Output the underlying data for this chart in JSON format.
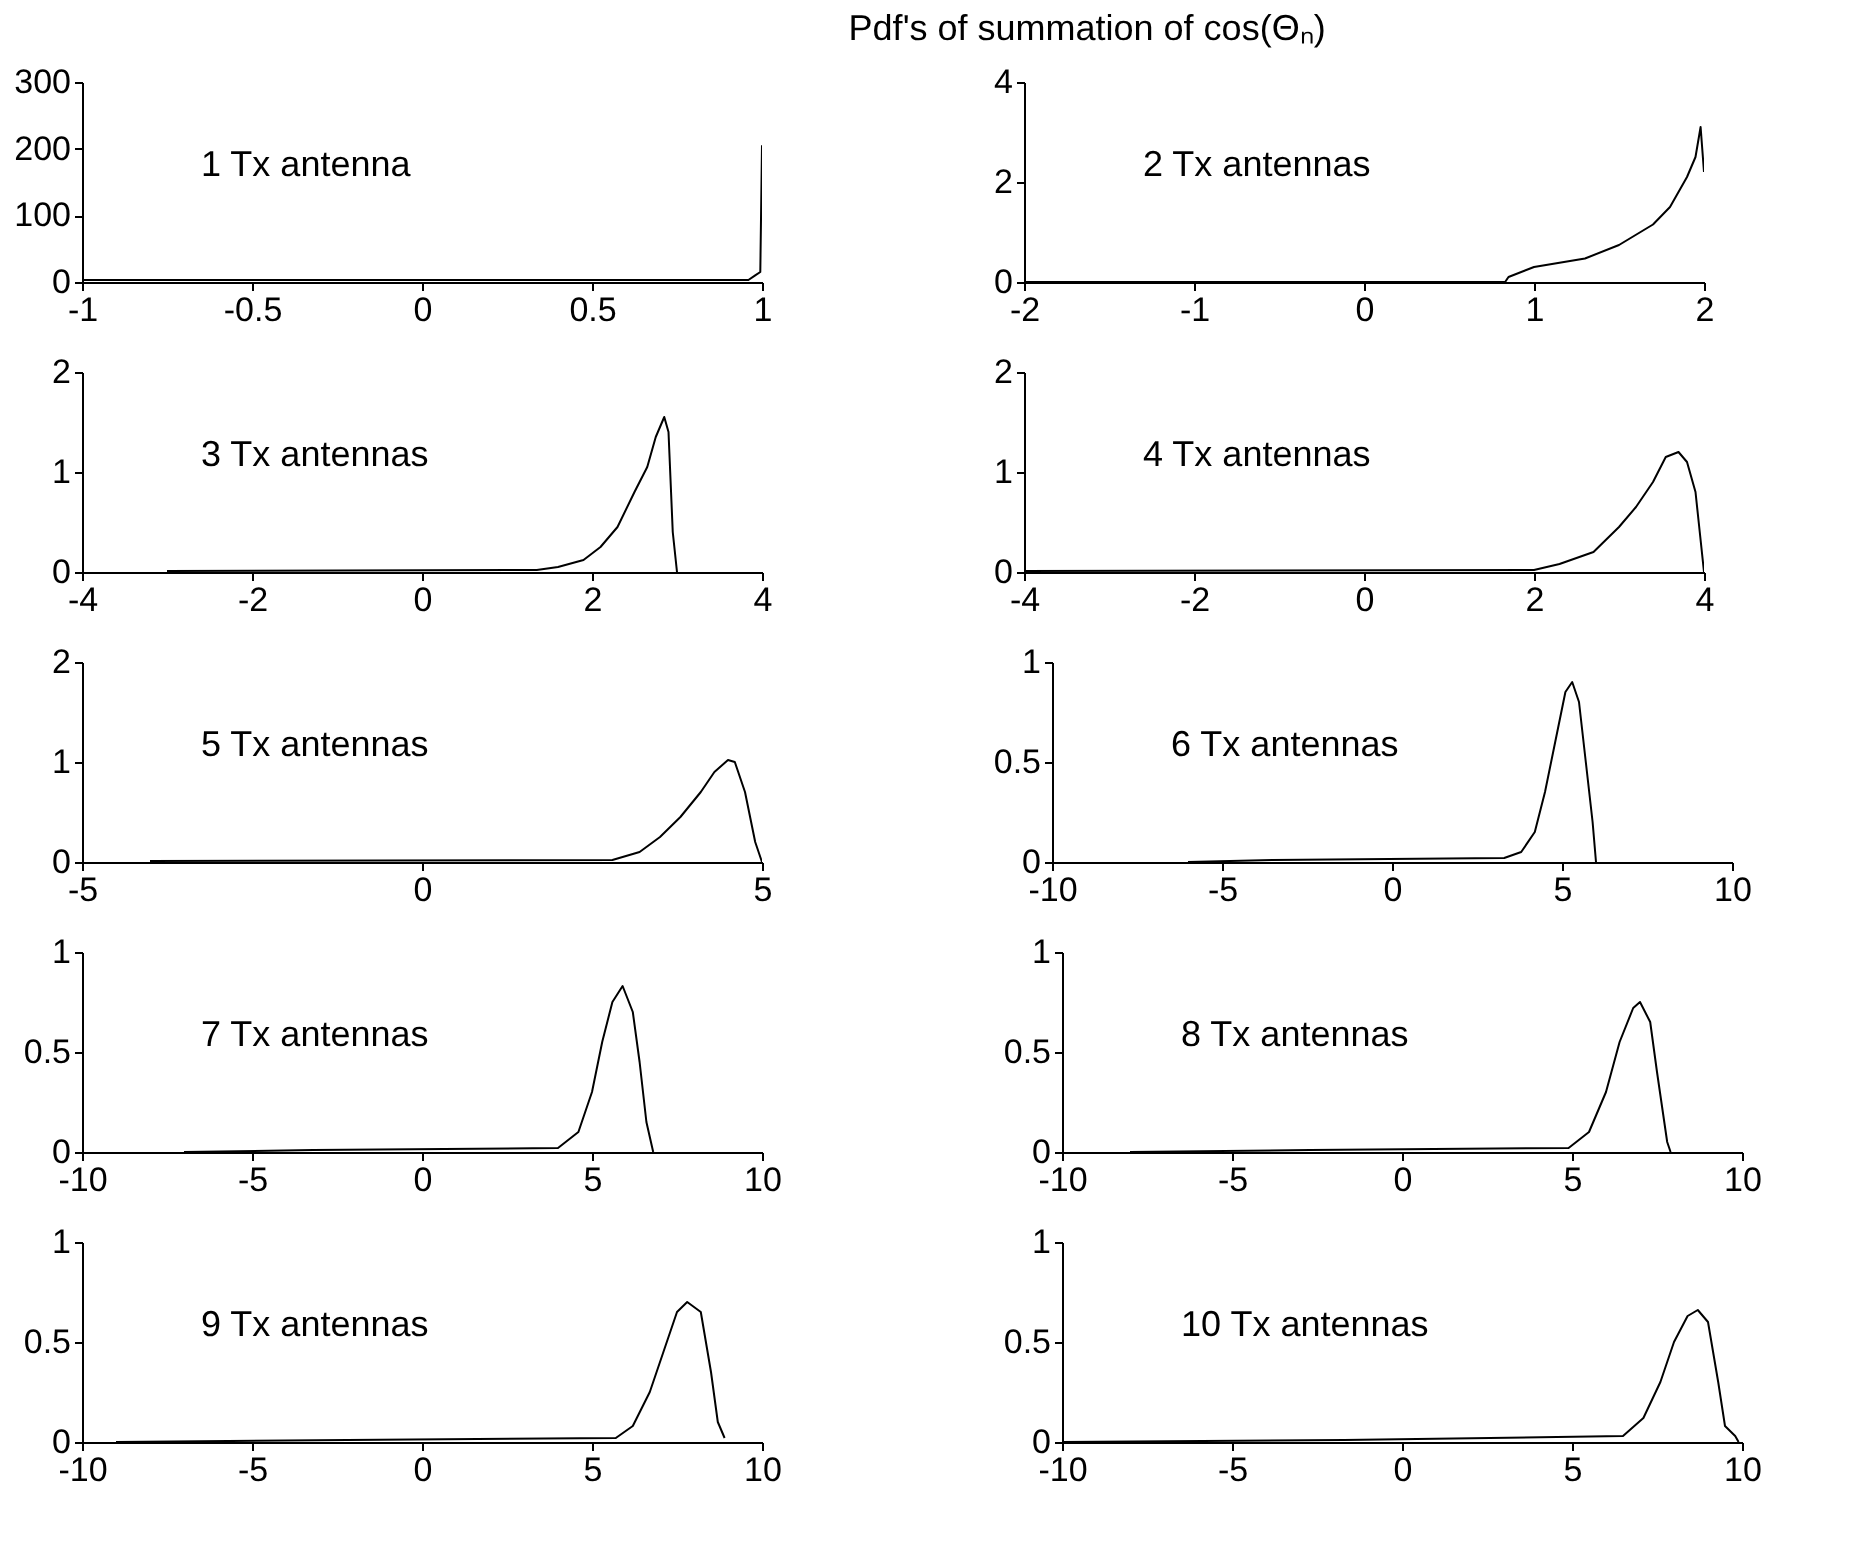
{
  "chart_data": [
    {
      "type": "line",
      "annotations": [
        "1 Tx antenna"
      ],
      "x": [
        -1,
        0.96,
        0.98,
        0.995,
        1
      ],
      "series": [
        {
          "color": "#000000",
          "values": [
            3,
            3,
            10,
            15,
            205
          ]
        }
      ],
      "xlim": [
        -1,
        1
      ],
      "xticks": [
        -1,
        -0.5,
        0,
        0.5,
        1
      ],
      "ylim": [
        0,
        300
      ],
      "yticks": [
        0,
        100,
        200,
        300
      ]
    },
    {
      "type": "line",
      "title": "Pdf's of summation of cos(Θₙ)",
      "annotations": [
        "2 Tx antennas"
      ],
      "x": [
        -2,
        0.83,
        0.85,
        1.0,
        1.3,
        1.5,
        1.7,
        1.8,
        1.9,
        1.95,
        1.98,
        2
      ],
      "series": [
        {
          "color": "#000000",
          "values": [
            0,
            0,
            0.1,
            0.3,
            0.47,
            0.74,
            1.15,
            1.5,
            2.1,
            2.5,
            3.1,
            2.2
          ]
        }
      ],
      "xlim": [
        -2,
        2
      ],
      "xticks": [
        -2,
        -1,
        0,
        1,
        2
      ],
      "ylim": [
        0,
        4
      ],
      "yticks": [
        0,
        2,
        4
      ]
    },
    {
      "type": "line",
      "annotations": [
        "3 Tx antennas"
      ],
      "x": [
        -3,
        1.35,
        1.6,
        1.9,
        2.1,
        2.3,
        2.5,
        2.65,
        2.75,
        2.85,
        2.9,
        2.95,
        3.0
      ],
      "series": [
        {
          "color": "#000000",
          "values": [
            0.01,
            0.02,
            0.05,
            0.12,
            0.25,
            0.45,
            0.8,
            1.05,
            1.35,
            1.55,
            1.4,
            0.4,
            0
          ]
        }
      ],
      "xlim": [
        -4,
        4
      ],
      "xticks": [
        -4,
        -2,
        0,
        2,
        4
      ],
      "ylim": [
        0,
        2
      ],
      "yticks": [
        0,
        1,
        2
      ]
    },
    {
      "type": "line",
      "annotations": [
        "4 Tx antennas"
      ],
      "x": [
        -4,
        2,
        2.3,
        2.7,
        3.0,
        3.2,
        3.4,
        3.55,
        3.7,
        3.8,
        3.9,
        3.95,
        4
      ],
      "series": [
        {
          "color": "#000000",
          "values": [
            0.01,
            0.02,
            0.08,
            0.2,
            0.45,
            0.65,
            0.9,
            1.15,
            1.2,
            1.1,
            0.8,
            0.4,
            0
          ]
        }
      ],
      "xlim": [
        -4,
        4
      ],
      "xticks": [
        -4,
        -2,
        0,
        2,
        4
      ],
      "ylim": [
        0,
        2
      ],
      "yticks": [
        0,
        1,
        2
      ]
    },
    {
      "type": "line",
      "annotations": [
        "5 Tx antennas"
      ],
      "x": [
        -4,
        2.8,
        3.2,
        3.5,
        3.8,
        4.1,
        4.3,
        4.5,
        4.6,
        4.75,
        4.9,
        5
      ],
      "series": [
        {
          "color": "#000000",
          "values": [
            0.01,
            0.02,
            0.1,
            0.25,
            0.45,
            0.7,
            0.9,
            1.02,
            1.0,
            0.7,
            0.2,
            0
          ]
        }
      ],
      "xlim": [
        -5,
        5
      ],
      "xticks": [
        -5,
        0,
        5
      ],
      "ylim": [
        0,
        2
      ],
      "yticks": [
        0,
        1,
        2
      ]
    },
    {
      "type": "line",
      "annotations": [
        "6 Tx antennas"
      ],
      "x": [
        -6,
        -3.5,
        3.3,
        3.8,
        4.2,
        4.5,
        4.8,
        5.1,
        5.3,
        5.5,
        5.7,
        5.9,
        6.0
      ],
      "series": [
        {
          "color": "#000000",
          "values": [
            0,
            0.01,
            0.02,
            0.05,
            0.15,
            0.35,
            0.6,
            0.85,
            0.9,
            0.8,
            0.5,
            0.2,
            0
          ]
        }
      ],
      "xlim": [
        -10,
        10
      ],
      "xticks": [
        -10,
        -5,
        0,
        5,
        10
      ],
      "ylim": [
        0,
        1
      ],
      "yticks": [
        0,
        0.5,
        1
      ]
    },
    {
      "type": "line",
      "annotations": [
        "7 Tx antennas"
      ],
      "x": [
        -7,
        -3.2,
        4,
        4.6,
        5.0,
        5.3,
        5.6,
        5.9,
        6.2,
        6.4,
        6.6,
        6.8
      ],
      "series": [
        {
          "color": "#000000",
          "values": [
            0,
            0.01,
            0.02,
            0.1,
            0.3,
            0.55,
            0.75,
            0.83,
            0.7,
            0.45,
            0.15,
            0
          ]
        }
      ],
      "xlim": [
        -10,
        10
      ],
      "xticks": [
        -10,
        -5,
        0,
        5,
        10
      ],
      "ylim": [
        0,
        1
      ],
      "yticks": [
        0,
        0.5,
        1
      ]
    },
    {
      "type": "line",
      "annotations": [
        "8 Tx antennas"
      ],
      "x": [
        -8,
        -2.7,
        4.9,
        5.5,
        6.0,
        6.4,
        6.8,
        7.0,
        7.3,
        7.5,
        7.8,
        7.9
      ],
      "series": [
        {
          "color": "#000000",
          "values": [
            0,
            0.01,
            0.02,
            0.1,
            0.3,
            0.55,
            0.72,
            0.75,
            0.65,
            0.4,
            0.05,
            0
          ]
        }
      ],
      "xlim": [
        -10,
        10
      ],
      "xticks": [
        -10,
        -5,
        0,
        5,
        10
      ],
      "ylim": [
        0,
        1
      ],
      "yticks": [
        0,
        0.5,
        1
      ]
    },
    {
      "type": "line",
      "annotations": [
        "9 Tx antennas"
      ],
      "x": [
        -9,
        -2.2,
        5.7,
        6.2,
        6.7,
        7.1,
        7.5,
        7.8,
        8.2,
        8.5,
        8.7,
        8.9
      ],
      "series": [
        {
          "color": "#000000",
          "values": [
            0,
            0.01,
            0.02,
            0.08,
            0.25,
            0.45,
            0.65,
            0.7,
            0.65,
            0.35,
            0.1,
            0.02
          ]
        }
      ],
      "xlim": [
        -10,
        10
      ],
      "xticks": [
        -10,
        -5,
        0,
        5,
        10
      ],
      "ylim": [
        0,
        1
      ],
      "yticks": [
        0,
        0.5,
        1
      ]
    },
    {
      "type": "line",
      "annotations": [
        "10 Tx antennas"
      ],
      "x": [
        -10,
        -1.7,
        6.5,
        7.1,
        7.6,
        8.0,
        8.4,
        8.7,
        9.0,
        9.3,
        9.5,
        9.8,
        9.9
      ],
      "series": [
        {
          "color": "#000000",
          "values": [
            0,
            0.01,
            0.03,
            0.12,
            0.3,
            0.5,
            0.63,
            0.66,
            0.6,
            0.3,
            0.08,
            0.03,
            0
          ]
        }
      ],
      "xlim": [
        -10,
        10
      ],
      "xticks": [
        -10,
        -5,
        0,
        5,
        10
      ],
      "ylim": [
        0,
        1
      ],
      "yticks": [
        0,
        0.5,
        1
      ]
    }
  ]
}
